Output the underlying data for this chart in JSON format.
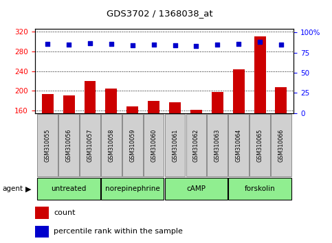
{
  "title": "GDS3702 / 1368038_at",
  "samples": [
    "GSM310055",
    "GSM310056",
    "GSM310057",
    "GSM310058",
    "GSM310059",
    "GSM310060",
    "GSM310061",
    "GSM310062",
    "GSM310063",
    "GSM310064",
    "GSM310065",
    "GSM310066"
  ],
  "counts": [
    194,
    191,
    220,
    204,
    168,
    179,
    177,
    162,
    198,
    244,
    310,
    207
  ],
  "percentiles": [
    86,
    85,
    87,
    86,
    84,
    85,
    84,
    83,
    85,
    86,
    88,
    85
  ],
  "groups": [
    {
      "label": "untreated",
      "start": 0,
      "end": 2
    },
    {
      "label": "norepinephrine",
      "start": 3,
      "end": 5
    },
    {
      "label": "cAMP",
      "start": 6,
      "end": 8
    },
    {
      "label": "forskolin",
      "start": 9,
      "end": 11
    }
  ],
  "ylim_left": [
    155,
    325
  ],
  "ylim_right": [
    0,
    104.17
  ],
  "yticks_left": [
    160,
    200,
    240,
    280,
    320
  ],
  "yticks_right": [
    0,
    25,
    50,
    75,
    100
  ],
  "ytick_labels_right": [
    "0",
    "25",
    "50",
    "75",
    "100%"
  ],
  "bar_color": "#CC0000",
  "dot_color": "#0000CC",
  "group_color": "#90EE90",
  "sample_box_color": "#d0d0d0",
  "background_color": "#ffffff",
  "label_count": "count",
  "label_percentile": "percentile rank within the sample",
  "agent_label": "agent",
  "bar_width": 0.55
}
